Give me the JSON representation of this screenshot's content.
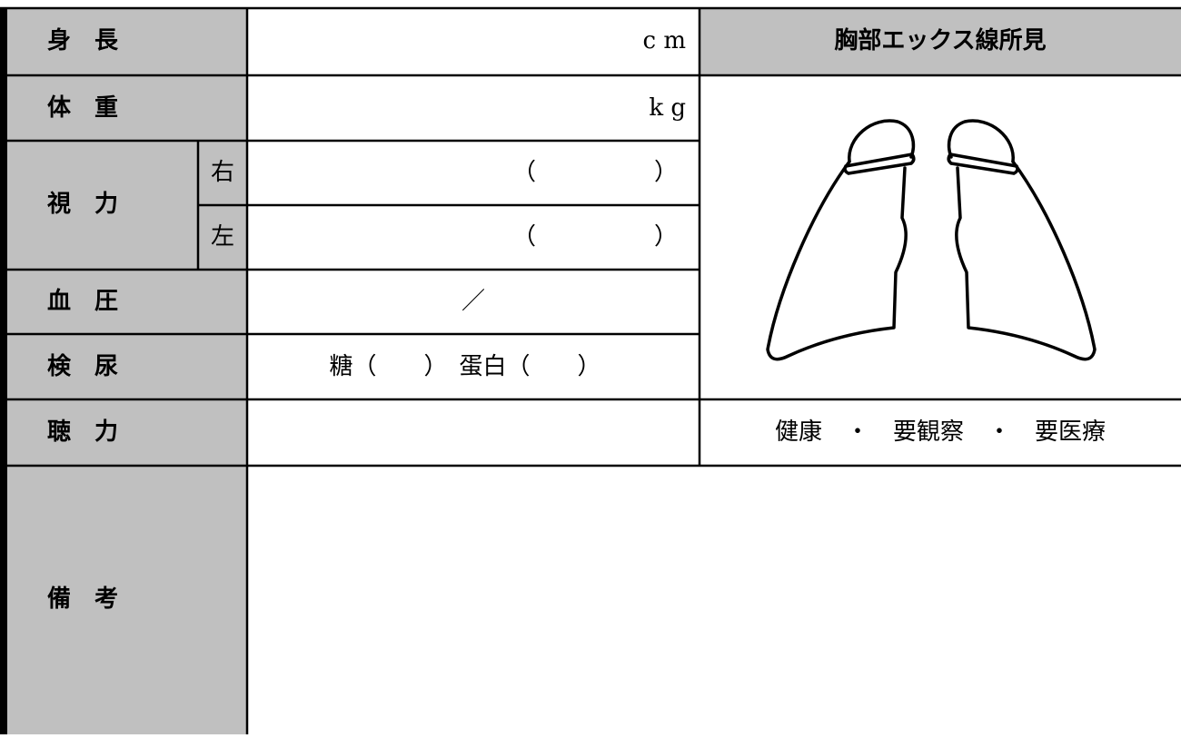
{
  "form": {
    "height": {
      "label": "身　長",
      "value": "c m"
    },
    "weight": {
      "label": "体　重",
      "value": "k g"
    },
    "vision": {
      "label": "視　力",
      "right": {
        "side": "右",
        "value": "（　　　　　）"
      },
      "left": {
        "side": "左",
        "value": "（　　　　　）"
      }
    },
    "blood_pressure": {
      "label": "血　圧",
      "value": "／"
    },
    "urine": {
      "label": "検　尿",
      "value": "糖（　　）　蛋白（　　）"
    },
    "hearing": {
      "label": "聴　力"
    },
    "remarks": {
      "label": "備　考"
    },
    "xray": {
      "title": "胸部エックス線所見",
      "findings": "健康　・　要観察　・　要医療"
    }
  }
}
